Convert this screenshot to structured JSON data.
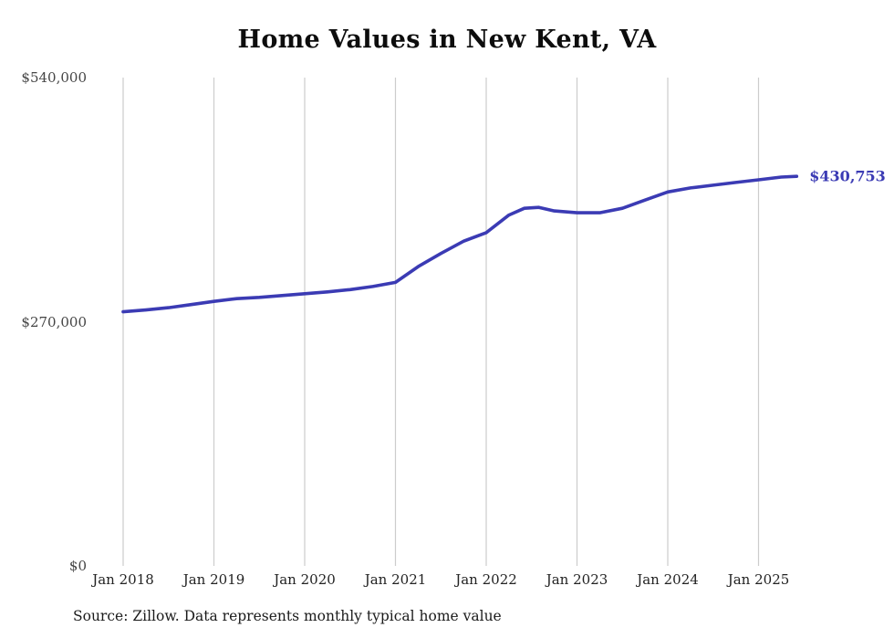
{
  "chart_data": {
    "type": "line",
    "title": "Home Values in New Kent, VA",
    "source_note": "Source: Zillow. Data represents monthly typical home value",
    "series_name": "Monthly typical home value",
    "latest_value_label": "$430,753",
    "line_color": "#3b3bb4",
    "gridline_color": "#cccccc",
    "grid": "vertical-only",
    "legend_position": "none",
    "xlim": [
      2018.0,
      2026.45
    ],
    "ylim": [
      0,
      540000
    ],
    "x_tick_years": [
      2018,
      2019,
      2020,
      2021,
      2022,
      2023,
      2024,
      2025
    ],
    "x_tick_labels": [
      "Jan 2018",
      "Jan 2019",
      "Jan 2020",
      "Jan 2021",
      "Jan 2022",
      "Jan 2023",
      "Jan 2024",
      "Jan 2025"
    ],
    "y_tick_values": [
      540000,
      270000,
      0
    ],
    "y_tick_labels": [
      "$540,000",
      "$270,000",
      "$0"
    ],
    "x": [
      2018.0,
      2018.25,
      2018.5,
      2018.75,
      2019.0,
      2019.25,
      2019.5,
      2019.75,
      2020.0,
      2020.25,
      2020.5,
      2020.75,
      2021.0,
      2021.25,
      2021.5,
      2021.75,
      2022.0,
      2022.25,
      2022.42,
      2022.58,
      2022.75,
      2023.0,
      2023.25,
      2023.5,
      2023.75,
      2024.0,
      2024.25,
      2024.5,
      2024.75,
      2025.0,
      2025.25,
      2025.42
    ],
    "values": [
      281000,
      283000,
      285500,
      289000,
      292500,
      295500,
      297000,
      299000,
      301000,
      303000,
      305500,
      309000,
      313500,
      331000,
      345500,
      359000,
      368500,
      388000,
      395500,
      396500,
      392500,
      390500,
      390500,
      395500,
      404500,
      413500,
      418000,
      421000,
      424000,
      427000,
      430000,
      430753
    ]
  }
}
